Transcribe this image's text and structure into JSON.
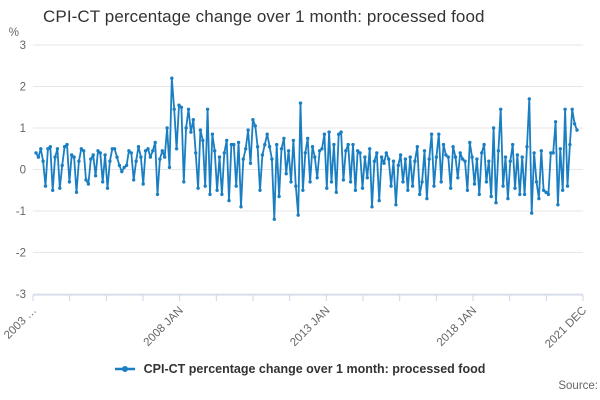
{
  "header": {
    "title": "CPI-CT percentage change over 1 month: processed food"
  },
  "legend": {
    "label": "CPI-CT percentage change over 1 month: processed food"
  },
  "footer": {
    "source_label": "Source:"
  },
  "colors": {
    "series": "#1a7ec2",
    "grid": "#e6e6e6",
    "axis": "#ccd6eb",
    "tick_label": "#666666",
    "title_text": "#333333"
  },
  "chart_data": {
    "type": "line",
    "title": "CPI-CT percentage change over 1 month: processed food",
    "xlabel": "",
    "ylabel": "%",
    "y_unit": "%",
    "ylim": [
      -3,
      3
    ],
    "yticks": [
      3,
      2,
      1,
      0,
      -1,
      -2,
      -3
    ],
    "grid": "horizontal-only",
    "legend_position": "bottom",
    "x_start": "2003 JAN",
    "x_end": "2021 DEC",
    "x_frequency": "monthly",
    "n_axis_ticks": 16,
    "xticks": [
      {
        "label": "2003 …",
        "tick_index": 0
      },
      {
        "label": "2008 JAN",
        "tick_index": 4
      },
      {
        "label": "2013 JAN",
        "tick_index": 8
      },
      {
        "label": "2018 JAN",
        "tick_index": 12
      },
      {
        "label": "2021 DEC",
        "tick_index": 15
      }
    ],
    "series": [
      {
        "name": "CPI-CT percentage change over 1 month: processed food",
        "color": "#1a7ec2",
        "values": [
          0.4,
          0.3,
          0.5,
          0.2,
          -0.4,
          0.5,
          0.55,
          -0.5,
          0.3,
          0.5,
          -0.45,
          0.1,
          0.55,
          0.6,
          -0.3,
          0.35,
          0.3,
          -0.55,
          0.2,
          0.5,
          0.45,
          -0.25,
          -0.35,
          0.25,
          0.35,
          -0.15,
          0.45,
          0.4,
          -0.3,
          0.35,
          -0.45,
          0.2,
          0.5,
          0.5,
          0.3,
          0.1,
          -0.05,
          0.05,
          0.1,
          0.45,
          0.4,
          -0.25,
          0.2,
          0.55,
          0.3,
          -0.35,
          0.45,
          0.5,
          0.3,
          0.45,
          0.65,
          -0.6,
          0.25,
          0.45,
          0.3,
          1.0,
          0.05,
          2.2,
          1.45,
          0.5,
          1.55,
          1.5,
          -0.3,
          1.0,
          1.45,
          0.9,
          1.2,
          0.4,
          -0.45,
          0.95,
          0.7,
          -0.4,
          1.45,
          -0.6,
          0.85,
          0.45,
          -0.5,
          0.3,
          -0.6,
          0.4,
          0.7,
          -0.75,
          0.6,
          0.6,
          -0.4,
          0.65,
          -0.9,
          0.25,
          0.5,
          0.95,
          0.15,
          1.2,
          1.05,
          0.55,
          -0.5,
          0.35,
          0.6,
          0.85,
          0.55,
          0.25,
          -1.2,
          0.6,
          -0.65,
          0.5,
          0.75,
          -0.1,
          0.45,
          -0.3,
          0.7,
          -0.4,
          -1.1,
          1.6,
          -0.5,
          0.4,
          0.75,
          -0.3,
          0.55,
          0.3,
          -0.2,
          0.45,
          0.5,
          0.85,
          -0.45,
          0.9,
          -0.3,
          0.6,
          -0.55,
          0.85,
          0.9,
          -0.25,
          0.45,
          0.6,
          -0.3,
          0.6,
          -0.5,
          0.45,
          0.4,
          -0.45,
          0.3,
          -0.2,
          0.5,
          -0.9,
          0.2,
          0.4,
          -0.75,
          0.3,
          0.15,
          0.4,
          0.25,
          -0.4,
          0.2,
          -0.85,
          0.1,
          0.35,
          -0.3,
          0.25,
          -0.5,
          0.3,
          -0.4,
          0.2,
          0.55,
          -0.6,
          -0.3,
          0.45,
          -0.7,
          0.25,
          0.85,
          -0.4,
          0.3,
          0.85,
          -0.3,
          0.6,
          0.35,
          0.3,
          -0.45,
          0.55,
          0.3,
          -0.2,
          0.4,
          0.25,
          0.2,
          -0.5,
          0.65,
          0.3,
          -0.35,
          0.25,
          -0.6,
          0.4,
          0.6,
          -0.3,
          0.2,
          -0.65,
          1.0,
          -0.8,
          0.45,
          1.45,
          -0.4,
          0.3,
          -0.7,
          0.2,
          0.6,
          -0.45,
          0.35,
          -0.6,
          0.3,
          -0.6,
          0.55,
          1.7,
          -1.05,
          0.4,
          -0.3,
          -0.7,
          0.45,
          -0.5,
          -0.55,
          -0.6,
          0.4,
          0.4,
          1.15,
          -0.85,
          0.5,
          -0.5,
          1.45,
          -0.4,
          0.6,
          1.45,
          1.1,
          0.95
        ]
      }
    ]
  }
}
